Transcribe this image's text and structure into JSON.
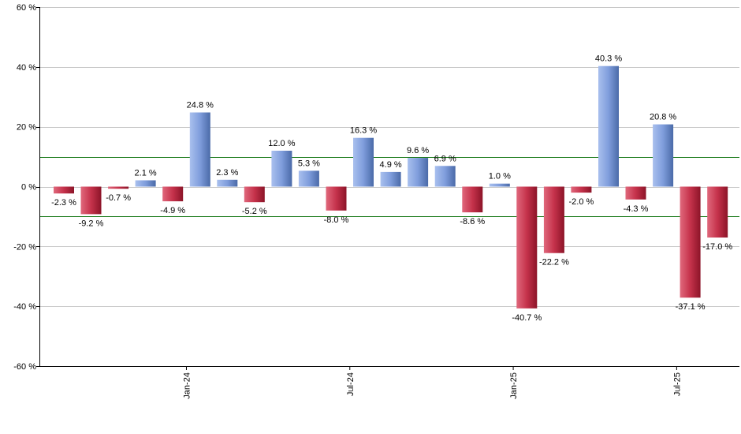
{
  "chart_data": {
    "type": "bar",
    "title": "",
    "xlabel": "",
    "ylabel": "",
    "ylim": [
      -60,
      60
    ],
    "y_ticks": [
      60,
      40,
      20,
      0,
      -20,
      -40,
      -60
    ],
    "y_tick_labels": [
      "60 %",
      "40 %",
      "20 %",
      "0 %",
      "-20 %",
      "-40 %",
      "-60 %"
    ],
    "grid": true,
    "reference_lines": [
      10,
      -10
    ],
    "reference_line_color": "#1a7a1a",
    "positive_color": "#6f8fcf",
    "negative_color": "#b8243c",
    "x_tick_labels": [
      {
        "label": "Jan-24",
        "index": 4.5
      },
      {
        "label": "Jul-24",
        "index": 10.5
      },
      {
        "label": "Jan-25",
        "index": 16.5
      },
      {
        "label": "Jul-25",
        "index": 22.5
      }
    ],
    "values": [
      -2.3,
      -9.2,
      -0.7,
      2.1,
      -4.9,
      24.8,
      2.3,
      -5.2,
      12.0,
      5.3,
      -8.0,
      16.3,
      4.9,
      9.6,
      6.9,
      -8.6,
      1.0,
      -40.7,
      -22.2,
      -2.0,
      40.3,
      -4.3,
      20.8,
      -37.1,
      -17.0
    ],
    "labels": [
      "-2.3 %",
      "-9.2 %",
      "-0.7 %",
      "2.1 %",
      "-4.9 %",
      "24.8 %",
      "2.3 %",
      "-5.2 %",
      "12.0 %",
      "5.3 %",
      "-8.0 %",
      "16.3 %",
      "4.9 %",
      "9.6 %",
      "6.9 %",
      "-8.6 %",
      "1.0 %",
      "-40.7 %",
      "-22.2 %",
      "-2.0 %",
      "40.3 %",
      "-4.3 %",
      "20.8 %",
      "-37.1 %",
      "-17.0 %"
    ]
  }
}
